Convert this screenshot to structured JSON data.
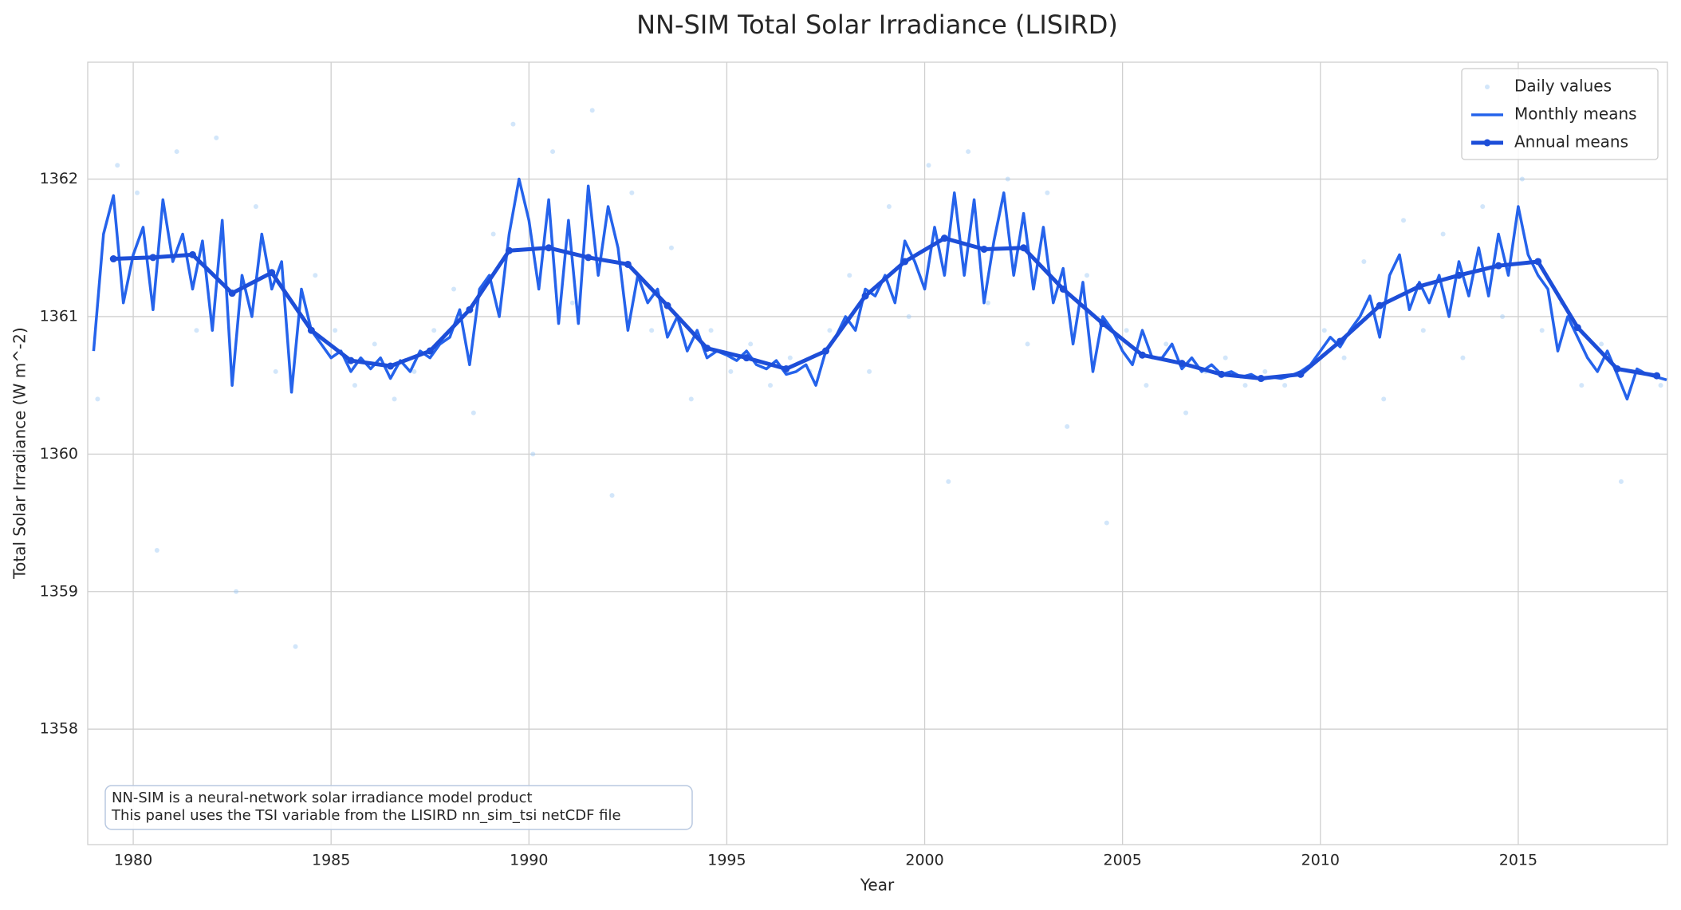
{
  "chart_data": {
    "type": "line",
    "title": "NN-SIM Total Solar Irradiance (LISIRD)",
    "xlabel": "Year",
    "ylabel": "Total Solar Irradiance (W m^-2)",
    "xlim": [
      1978.85,
      2018.77
    ],
    "ylim": [
      1357.16,
      1362.85
    ],
    "xticks": [
      1980,
      1985,
      1990,
      1995,
      2000,
      2005,
      2010,
      2015
    ],
    "yticks": [
      1358,
      1359,
      1360,
      1361,
      1362
    ],
    "grid": true,
    "legend": "upper right",
    "annotation": [
      "NN-SIM is a neural-network solar irradiance model product",
      "This panel uses the TSI variable from the LISIRD nn_sim_tsi netCDF file"
    ],
    "series": [
      {
        "name": "Daily values",
        "kind": "scatter",
        "color": "#9cc7f5",
        "x": [
          1979.1,
          1979.6,
          1980.1,
          1980.6,
          1981.1,
          1981.6,
          1982.1,
          1982.6,
          1983.1,
          1983.6,
          1984.1,
          1984.6,
          1985.1,
          1985.6,
          1986.1,
          1986.6,
          1987.1,
          1987.6,
          1988.1,
          1988.6,
          1989.1,
          1989.6,
          1990.1,
          1990.6,
          1991.1,
          1991.6,
          1992.1,
          1992.6,
          1993.1,
          1993.6,
          1994.1,
          1994.6,
          1995.1,
          1995.6,
          1996.1,
          1996.6,
          1997.1,
          1997.6,
          1998.1,
          1998.6,
          1999.1,
          1999.6,
          2000.1,
          2000.6,
          2001.1,
          2001.6,
          2002.1,
          2002.6,
          2003.1,
          2003.6,
          2004.1,
          2004.6,
          2005.1,
          2005.6,
          2006.1,
          2006.6,
          2007.1,
          2007.6,
          2008.1,
          2008.6,
          2009.1,
          2009.6,
          2010.1,
          2010.6,
          2011.1,
          2011.6,
          2012.1,
          2012.6,
          2013.1,
          2013.6,
          2014.1,
          2014.6,
          2015.1,
          2015.6,
          2016.1,
          2016.6,
          2017.1,
          2017.6,
          2018.1,
          2018.6
        ],
        "values": [
          1360.4,
          1362.1,
          1361.9,
          1359.3,
          1362.2,
          1360.9,
          1362.3,
          1359.0,
          1361.8,
          1360.6,
          1358.6,
          1361.3,
          1360.9,
          1360.5,
          1360.8,
          1360.4,
          1360.6,
          1360.9,
          1361.2,
          1360.3,
          1361.6,
          1362.4,
          1360.0,
          1362.2,
          1361.1,
          1362.5,
          1359.7,
          1361.9,
          1360.9,
          1361.5,
          1360.4,
          1360.9,
          1360.6,
          1360.8,
          1360.5,
          1360.7,
          1360.6,
          1360.9,
          1361.3,
          1360.6,
          1361.8,
          1361.0,
          1362.1,
          1359.8,
          1362.2,
          1361.1,
          1362.0,
          1360.8,
          1361.9,
          1360.2,
          1361.3,
          1359.5,
          1360.9,
          1360.5,
          1360.8,
          1360.3,
          1360.6,
          1360.7,
          1360.5,
          1360.6,
          1360.5,
          1360.6,
          1360.9,
          1360.7,
          1361.4,
          1360.4,
          1361.7,
          1360.9,
          1361.6,
          1360.7,
          1361.8,
          1361.0,
          1362.0,
          1360.9,
          1361.1,
          1360.5,
          1360.8,
          1359.8,
          1360.6,
          1360.5
        ]
      },
      {
        "name": "Monthly means",
        "kind": "line",
        "color": "#2563eb",
        "x": [
          1979,
          1979.25,
          1979.5,
          1979.75,
          1980,
          1980.25,
          1980.5,
          1980.75,
          1981,
          1981.25,
          1981.5,
          1981.75,
          1982,
          1982.25,
          1982.5,
          1982.75,
          1983,
          1983.25,
          1983.5,
          1983.75,
          1984,
          1984.25,
          1984.5,
          1984.75,
          1985,
          1985.25,
          1985.5,
          1985.75,
          1986,
          1986.25,
          1986.5,
          1986.75,
          1987,
          1987.25,
          1987.5,
          1987.75,
          1988,
          1988.25,
          1988.5,
          1988.75,
          1989,
          1989.25,
          1989.5,
          1989.75,
          1990,
          1990.25,
          1990.5,
          1990.75,
          1991,
          1991.25,
          1991.5,
          1991.75,
          1992,
          1992.25,
          1992.5,
          1992.75,
          1993,
          1993.25,
          1993.5,
          1993.75,
          1994,
          1994.25,
          1994.5,
          1994.75,
          1995,
          1995.25,
          1995.5,
          1995.75,
          1996,
          1996.25,
          1996.5,
          1996.75,
          1997,
          1997.25,
          1997.5,
          1997.75,
          1998,
          1998.25,
          1998.5,
          1998.75,
          1999,
          1999.25,
          1999.5,
          1999.75,
          2000,
          2000.25,
          2000.5,
          2000.75,
          2001,
          2001.25,
          2001.5,
          2001.75,
          2002,
          2002.25,
          2002.5,
          2002.75,
          2003,
          2003.25,
          2003.5,
          2003.75,
          2004,
          2004.25,
          2004.5,
          2004.75,
          2005,
          2005.25,
          2005.5,
          2005.75,
          2006,
          2006.25,
          2006.5,
          2006.75,
          2007,
          2007.25,
          2007.5,
          2007.75,
          2008,
          2008.25,
          2008.5,
          2008.75,
          2009,
          2009.25,
          2009.5,
          2009.75,
          2010,
          2010.25,
          2010.5,
          2010.75,
          2011,
          2011.25,
          2011.5,
          2011.75,
          2012,
          2012.25,
          2012.5,
          2012.75,
          2013,
          2013.25,
          2013.5,
          2013.75,
          2014,
          2014.25,
          2014.5,
          2014.75,
          2015,
          2015.25,
          2015.5,
          2015.75,
          2016,
          2016.25,
          2016.5,
          2016.75,
          2017,
          2017.25,
          2017.5,
          2017.75,
          2018,
          2018.25,
          2018.5,
          2018.75
        ],
        "values": [
          1360.75,
          1361.6,
          1361.88,
          1361.1,
          1361.45,
          1361.65,
          1361.05,
          1361.85,
          1361.4,
          1361.6,
          1361.2,
          1361.55,
          1360.9,
          1361.7,
          1360.5,
          1361.3,
          1361.0,
          1361.6,
          1361.2,
          1361.4,
          1360.45,
          1361.2,
          1360.9,
          1360.8,
          1360.7,
          1360.75,
          1360.6,
          1360.7,
          1360.62,
          1360.7,
          1360.55,
          1360.68,
          1360.6,
          1360.75,
          1360.7,
          1360.8,
          1360.85,
          1361.05,
          1360.65,
          1361.2,
          1361.3,
          1361.0,
          1361.6,
          1362.0,
          1361.7,
          1361.2,
          1361.85,
          1360.95,
          1361.7,
          1360.95,
          1361.95,
          1361.3,
          1361.8,
          1361.5,
          1360.9,
          1361.3,
          1361.1,
          1361.2,
          1360.85,
          1361.0,
          1360.75,
          1360.9,
          1360.7,
          1360.75,
          1360.72,
          1360.68,
          1360.75,
          1360.65,
          1360.62,
          1360.68,
          1360.58,
          1360.6,
          1360.65,
          1360.5,
          1360.75,
          1360.85,
          1361.0,
          1360.9,
          1361.2,
          1361.15,
          1361.3,
          1361.1,
          1361.55,
          1361.4,
          1361.2,
          1361.65,
          1361.3,
          1361.9,
          1361.3,
          1361.85,
          1361.1,
          1361.55,
          1361.9,
          1361.3,
          1361.75,
          1361.2,
          1361.65,
          1361.1,
          1361.35,
          1360.8,
          1361.25,
          1360.6,
          1361.0,
          1360.9,
          1360.75,
          1360.65,
          1360.9,
          1360.7,
          1360.7,
          1360.8,
          1360.62,
          1360.7,
          1360.6,
          1360.65,
          1360.58,
          1360.6,
          1360.56,
          1360.58,
          1360.54,
          1360.56,
          1360.55,
          1360.57,
          1360.6,
          1360.65,
          1360.75,
          1360.85,
          1360.78,
          1360.9,
          1361.0,
          1361.15,
          1360.85,
          1361.3,
          1361.45,
          1361.05,
          1361.25,
          1361.1,
          1361.3,
          1361.0,
          1361.4,
          1361.15,
          1361.5,
          1361.15,
          1361.6,
          1361.3,
          1361.8,
          1361.45,
          1361.3,
          1361.2,
          1360.75,
          1361.0,
          1360.85,
          1360.7,
          1360.6,
          1360.75,
          1360.58,
          1360.4,
          1360.62,
          1360.58,
          1360.56,
          1360.54
        ]
      },
      {
        "name": "Annual means",
        "kind": "line-markers",
        "color": "#1d4ed8",
        "x": [
          1979.5,
          1980.5,
          1981.5,
          1982.5,
          1983.5,
          1984.5,
          1985.5,
          1986.5,
          1987.5,
          1988.5,
          1989.5,
          1990.5,
          1991.5,
          1992.5,
          1993.5,
          1994.5,
          1995.5,
          1996.5,
          1997.5,
          1998.5,
          1999.5,
          2000.5,
          2001.5,
          2002.5,
          2003.5,
          2004.5,
          2005.5,
          2006.5,
          2007.5,
          2008.5,
          2009.5,
          2010.5,
          2011.5,
          2012.5,
          2013.5,
          2014.5,
          2015.5,
          2016.5,
          2017.5,
          2018.5
        ],
        "values": [
          1361.42,
          1361.43,
          1361.45,
          1361.17,
          1361.32,
          1360.9,
          1360.68,
          1360.64,
          1360.75,
          1361.05,
          1361.48,
          1361.5,
          1361.43,
          1361.38,
          1361.08,
          1360.77,
          1360.7,
          1360.62,
          1360.75,
          1361.15,
          1361.4,
          1361.57,
          1361.49,
          1361.5,
          1361.2,
          1360.95,
          1360.72,
          1360.66,
          1360.58,
          1360.55,
          1360.58,
          1360.82,
          1361.08,
          1361.22,
          1361.3,
          1361.37,
          1361.4,
          1360.92,
          1360.62,
          1360.57
        ]
      }
    ]
  }
}
